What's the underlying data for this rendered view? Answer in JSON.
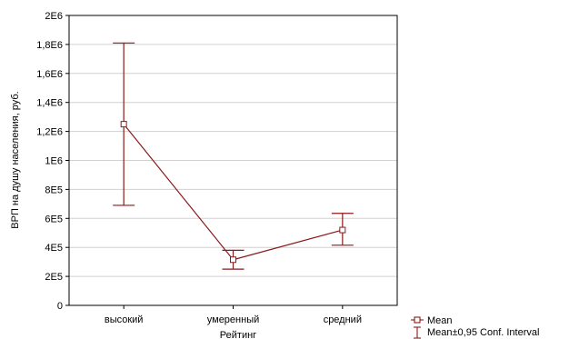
{
  "chart_data": {
    "type": "line",
    "categories": [
      "высокий",
      "умеренный",
      "средний"
    ],
    "series": [
      {
        "name": "Mean",
        "values": [
          1250000,
          315000,
          520000
        ],
        "ci_lower": [
          690000,
          250000,
          415000
        ],
        "ci_upper": [
          1810000,
          380000,
          635000
        ]
      }
    ],
    "xlabel": "Рейтинг",
    "ylabel": "ВРП на душу населения, руб.",
    "ylim": [
      0,
      2000000
    ],
    "yticks": [
      {
        "value": 0,
        "label": "0"
      },
      {
        "value": 200000,
        "label": "2E5"
      },
      {
        "value": 400000,
        "label": "4E5"
      },
      {
        "value": 600000,
        "label": "6E5"
      },
      {
        "value": 800000,
        "label": "8E5"
      },
      {
        "value": 1000000,
        "label": "1E6"
      },
      {
        "value": 1200000,
        "label": "1,2E6"
      },
      {
        "value": 1400000,
        "label": "1,4E6"
      },
      {
        "value": 1600000,
        "label": "1,6E6"
      },
      {
        "value": 1800000,
        "label": "1,8E6"
      },
      {
        "value": 2000000,
        "label": "2E6"
      }
    ],
    "legend": {
      "placement": "bottom-right",
      "mean_label": "Mean",
      "ci_label": "Mean±0,95 Conf. Interval"
    },
    "grid": true,
    "colors": {
      "series": "#8b1a1a",
      "grid": "#d0d0d0",
      "axis": "#000000"
    }
  }
}
